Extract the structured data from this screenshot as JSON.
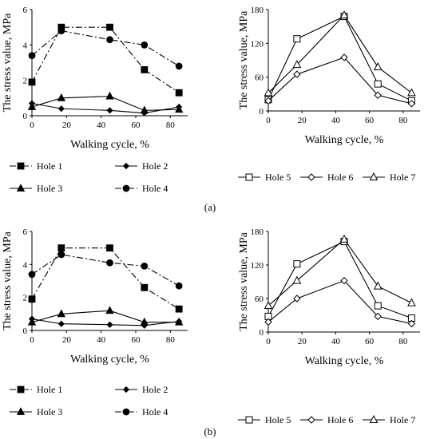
{
  "panels": [
    {
      "label": "(a)"
    },
    {
      "label": "(b)"
    }
  ],
  "chart_data": [
    {
      "type": "line",
      "panel": "(a)",
      "xlabel": "Walking cycle, %",
      "ylabel": "The stress value, MPa",
      "xlim": [
        0,
        90
      ],
      "ylim": [
        0,
        6
      ],
      "xticks": [
        0,
        20,
        40,
        60,
        80
      ],
      "yticks": [
        0,
        2,
        4,
        6
      ],
      "grid": false,
      "legend": "bottom",
      "x": [
        0,
        17,
        45,
        65,
        85
      ],
      "series": [
        {
          "name": "Hole 1",
          "values": [
            1.9,
            5.0,
            5.0,
            2.6,
            1.3
          ],
          "marker": "square",
          "dash": "dash-dot"
        },
        {
          "name": "Hole 2",
          "values": [
            0.7,
            0.4,
            0.3,
            0.15,
            0.5
          ],
          "marker": "diamond",
          "dash": "solid"
        },
        {
          "name": "Hole 3",
          "values": [
            0.5,
            1.0,
            1.1,
            0.3,
            0.35
          ],
          "marker": "triangle",
          "dash": "solid"
        },
        {
          "name": "Hole 4",
          "values": [
            3.4,
            4.8,
            4.3,
            4.0,
            2.8
          ],
          "marker": "circle",
          "dash": "dash-dot"
        }
      ]
    },
    {
      "type": "line",
      "panel": "(a)",
      "xlabel": "Walking cycle, %",
      "ylabel": "The stress value, MPa",
      "xlim": [
        0,
        90
      ],
      "ylim": [
        0,
        180
      ],
      "xticks": [
        0,
        20,
        40,
        60,
        80
      ],
      "yticks": [
        0,
        60,
        120,
        180
      ],
      "grid": false,
      "legend": "bottom",
      "x": [
        0,
        17,
        45,
        65,
        85
      ],
      "series": [
        {
          "name": "Hole 5",
          "values": [
            20,
            128,
            168,
            48,
            18
          ],
          "marker": "open-square",
          "dash": "solid"
        },
        {
          "name": "Hole 6",
          "values": [
            18,
            65,
            95,
            28,
            13
          ],
          "marker": "open-diamond",
          "dash": "solid"
        },
        {
          "name": "Hole 7",
          "values": [
            32,
            82,
            170,
            78,
            32
          ],
          "marker": "open-triangle",
          "dash": "solid"
        }
      ]
    },
    {
      "type": "line",
      "panel": "(b)",
      "xlabel": "Walking cycle, %",
      "ylabel": "The stress value, MPa",
      "xlim": [
        0,
        90
      ],
      "ylim": [
        0,
        6
      ],
      "xticks": [
        0,
        20,
        40,
        60,
        80
      ],
      "yticks": [
        0,
        2,
        4,
        6
      ],
      "grid": false,
      "legend": "bottom",
      "x": [
        0,
        17,
        45,
        65,
        85
      ],
      "series": [
        {
          "name": "Hole 1",
          "values": [
            1.9,
            5.0,
            5.0,
            2.6,
            1.3
          ],
          "marker": "square",
          "dash": "dash-dot"
        },
        {
          "name": "Hole 2",
          "values": [
            0.7,
            0.4,
            0.35,
            0.3,
            0.55
          ],
          "marker": "diamond",
          "dash": "solid"
        },
        {
          "name": "Hole 3",
          "values": [
            0.5,
            1.0,
            1.2,
            0.5,
            0.5
          ],
          "marker": "triangle",
          "dash": "solid"
        },
        {
          "name": "Hole 4",
          "values": [
            3.4,
            4.6,
            4.1,
            3.9,
            2.7
          ],
          "marker": "circle",
          "dash": "dash-dot"
        }
      ]
    },
    {
      "type": "line",
      "panel": "(b)",
      "xlabel": "Walking cycle, %",
      "ylabel": "The stress value, MPa",
      "xlim": [
        0,
        90
      ],
      "ylim": [
        0,
        180
      ],
      "xticks": [
        0,
        20,
        40,
        60,
        80
      ],
      "yticks": [
        0,
        60,
        120,
        180
      ],
      "grid": false,
      "legend": "bottom",
      "x": [
        0,
        17,
        45,
        65,
        85
      ],
      "series": [
        {
          "name": "Hole 5",
          "values": [
            28,
            122,
            162,
            47,
            25
          ],
          "marker": "open-square",
          "dash": "solid"
        },
        {
          "name": "Hole 6",
          "values": [
            18,
            60,
            92,
            28,
            15
          ],
          "marker": "open-diamond",
          "dash": "solid"
        },
        {
          "name": "Hole 7",
          "values": [
            47,
            92,
            166,
            82,
            52
          ],
          "marker": "open-triangle",
          "dash": "solid"
        }
      ]
    }
  ]
}
